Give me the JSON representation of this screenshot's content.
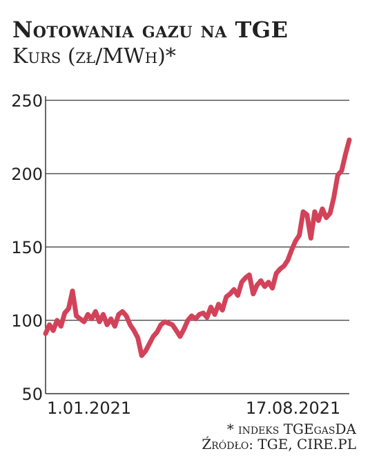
{
  "chart_data": {
    "type": "line",
    "title": "Notowania gazu na TGE",
    "subtitle": "Kurs (zł/MWh)*",
    "xlabel": "",
    "ylabel": "",
    "ylim": [
      50,
      250
    ],
    "yticks": [
      "250",
      "200",
      "150",
      "100",
      "50"
    ],
    "ytick_values": [
      250,
      200,
      150,
      100,
      50
    ],
    "xtick_labels": [
      "1.01.2021",
      "17.08.2021"
    ],
    "xtick_values": [
      "2021-01-01",
      "2021-08-17"
    ],
    "grid": true,
    "color": "#d2435a",
    "x": [
      "2021-01-01",
      "2021-01-04",
      "2021-01-07",
      "2021-01-10",
      "2021-01-13",
      "2021-01-16",
      "2021-01-19",
      "2021-01-22",
      "2021-01-25",
      "2021-01-28",
      "2021-01-31",
      "2021-02-03",
      "2021-02-06",
      "2021-02-09",
      "2021-02-12",
      "2021-02-15",
      "2021-02-18",
      "2021-02-21",
      "2021-02-24",
      "2021-02-27",
      "2021-03-02",
      "2021-03-05",
      "2021-03-08",
      "2021-03-11",
      "2021-03-14",
      "2021-03-17",
      "2021-03-20",
      "2021-03-23",
      "2021-03-26",
      "2021-03-29",
      "2021-04-01",
      "2021-04-04",
      "2021-04-07",
      "2021-04-10",
      "2021-04-13",
      "2021-04-16",
      "2021-04-19",
      "2021-04-22",
      "2021-04-25",
      "2021-04-28",
      "2021-05-01",
      "2021-05-04",
      "2021-05-07",
      "2021-05-10",
      "2021-05-13",
      "2021-05-16",
      "2021-05-19",
      "2021-05-22",
      "2021-05-25",
      "2021-05-28",
      "2021-05-31",
      "2021-06-03",
      "2021-06-06",
      "2021-06-09",
      "2021-06-12",
      "2021-06-15",
      "2021-06-18",
      "2021-06-21",
      "2021-06-24",
      "2021-06-27",
      "2021-06-30",
      "2021-07-03",
      "2021-07-06",
      "2021-07-09",
      "2021-07-12",
      "2021-07-15",
      "2021-07-18",
      "2021-07-21",
      "2021-07-24",
      "2021-07-27",
      "2021-07-30",
      "2021-08-02",
      "2021-08-05",
      "2021-08-08",
      "2021-08-11",
      "2021-08-14",
      "2021-08-17",
      "2021-08-20",
      "2021-08-23",
      "2021-08-26"
    ],
    "values": [
      91,
      97,
      93,
      100,
      96,
      105,
      108,
      120,
      103,
      101,
      99,
      104,
      101,
      106,
      99,
      104,
      97,
      101,
      96,
      104,
      106,
      103,
      97,
      93,
      88,
      76,
      79,
      84,
      89,
      92,
      97,
      99,
      98,
      97,
      93,
      89,
      94,
      100,
      103,
      101,
      104,
      105,
      102,
      109,
      104,
      111,
      107,
      116,
      118,
      121,
      117,
      126,
      129,
      131,
      118,
      124,
      127,
      123,
      126,
      122,
      132,
      135,
      137,
      141,
      148,
      154,
      158,
      174,
      172,
      156,
      174,
      168,
      176,
      170,
      173,
      184,
      199,
      202,
      213,
      223
    ]
  }
}
